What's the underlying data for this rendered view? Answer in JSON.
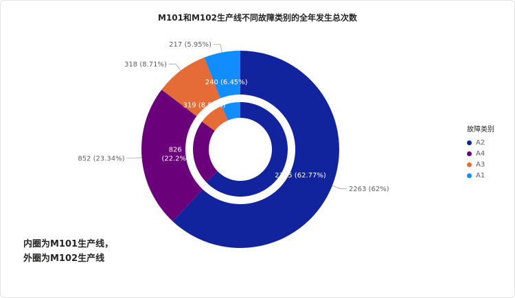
{
  "chart_data": {
    "type": "pie",
    "title": "M101和M102生产线不同故障类别的全年发生总次数",
    "legend": {
      "title": "故障类别",
      "placement": "right"
    },
    "categories": [
      "A2",
      "A4",
      "A3",
      "A1"
    ],
    "colors": [
      "#12239e",
      "#6b007b",
      "#e66c37",
      "#118dff"
    ],
    "series": [
      {
        "name": "M102",
        "values": [
          2263,
          852,
          318,
          217
        ],
        "labels": [
          "2263 (62%)",
          "852 (23.34%)",
          "318 (8.71%)",
          "217 (5.95%)"
        ]
      },
      {
        "name": "M101",
        "values": [
          2335,
          826,
          319,
          240
        ],
        "labels": [
          "2335 (62.77%)",
          "826 (22.2%)",
          "319 (8.58%)",
          "240 (6.45%)"
        ]
      }
    ]
  },
  "annotation": {
    "line1": "内圈为M101生产线，",
    "line2": "外圈为M102生产线"
  }
}
